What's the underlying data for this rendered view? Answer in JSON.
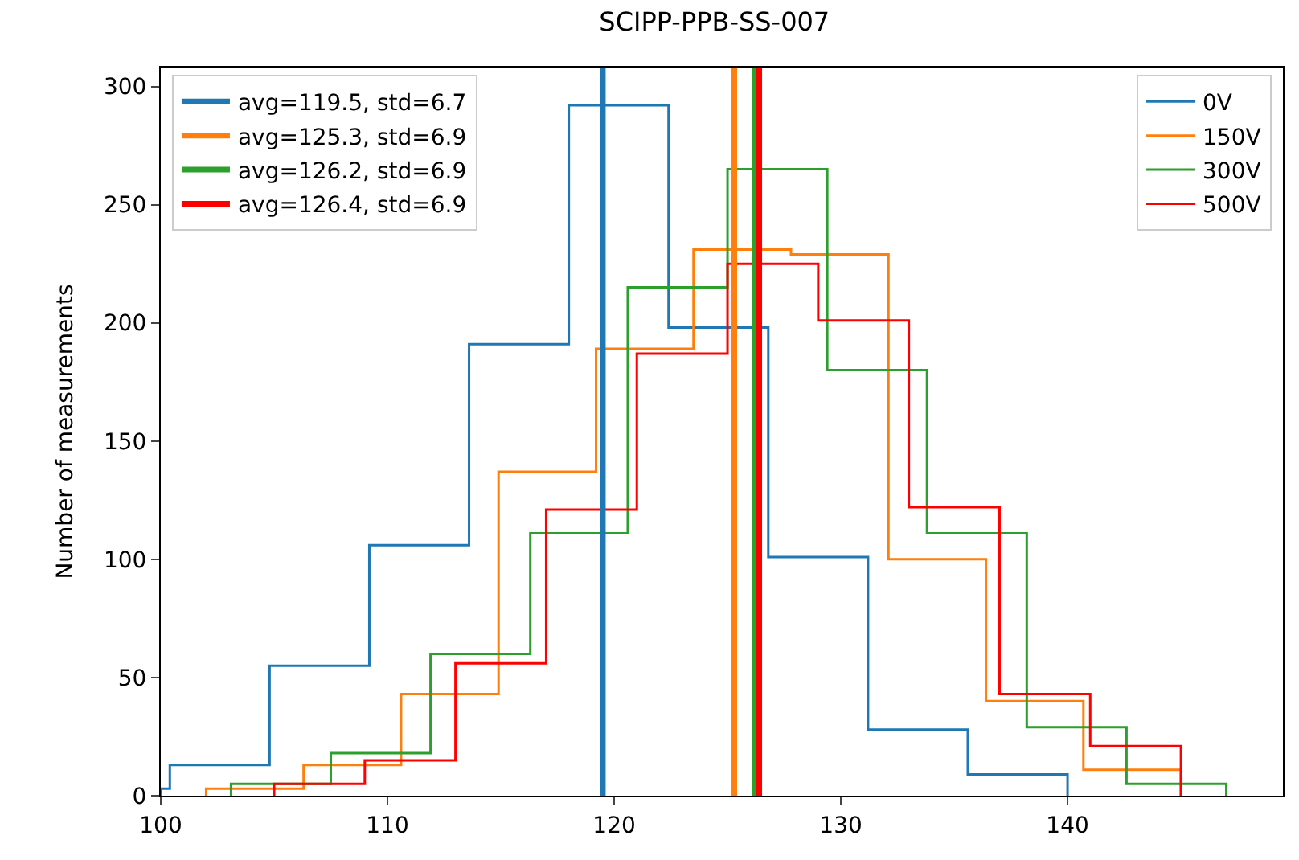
{
  "chart_data": {
    "type": "step",
    "title": "SCIPP-PPB-SS-007",
    "ylabel": "Number of measurements",
    "xlim": [
      100,
      149.5
    ],
    "xticks": [
      100,
      110,
      120,
      130,
      140
    ],
    "ylim": [
      0,
      308
    ],
    "yticks": [
      0,
      50,
      100,
      150,
      200,
      250,
      300
    ],
    "legend": "top right",
    "series": [
      {
        "name": "0V",
        "color": "#1f77b4",
        "x": [
          100,
          100,
          100.4,
          104.8,
          109.2,
          113.6,
          118.0,
          122.4,
          126.8,
          131.2,
          135.6,
          140.0
        ],
        "values": [
          0,
          3,
          13,
          55,
          106,
          191,
          292,
          198,
          101,
          28,
          9,
          0
        ]
      },
      {
        "name": "150V",
        "color": "#ff7f0e",
        "x": [
          102.0,
          102.0,
          106.3,
          110.6,
          114.9,
          119.2,
          123.5,
          127.8,
          132.1,
          136.4,
          140.7,
          145.0
        ],
        "values": [
          0,
          3,
          13,
          43,
          137,
          189,
          231,
          229,
          100,
          40,
          11,
          0
        ]
      },
      {
        "name": "300V",
        "color": "#2ca02c",
        "x": [
          103.1,
          103.1,
          107.5,
          111.9,
          116.3,
          120.6,
          125.0,
          129.4,
          133.8,
          138.2,
          142.6,
          147.0
        ],
        "values": [
          0,
          5,
          18,
          60,
          111,
          215,
          265,
          180,
          111,
          29,
          5,
          0
        ]
      },
      {
        "name": "500V",
        "color": "#ff0000",
        "x": [
          105,
          105,
          109,
          113,
          117,
          121,
          125,
          129,
          133,
          137,
          141,
          145
        ],
        "values": [
          0,
          5,
          15,
          56,
          121,
          187,
          225,
          201,
          122,
          43,
          21,
          0
        ]
      },
      {
        "type": "line",
        "name": "avg=119.5, std=6.7",
        "color": "#1f77b4",
        "x": [
          119.5,
          119.5
        ],
        "values": [
          0,
          308
        ]
      },
      {
        "type": "line",
        "name": "avg=125.3, std=6.9",
        "color": "#ff7f0e",
        "x": [
          125.3,
          125.3
        ],
        "values": [
          0,
          308
        ]
      },
      {
        "type": "line",
        "name": "avg=126.2, std=6.9",
        "color": "#2ca02c",
        "x": [
          126.2,
          126.2
        ],
        "values": [
          0,
          308
        ]
      },
      {
        "type": "line",
        "name": "avg=126.4, std=6.9",
        "color": "#ff0000",
        "x": [
          126.4,
          126.4
        ],
        "values": [
          0,
          308
        ]
      }
    ]
  }
}
